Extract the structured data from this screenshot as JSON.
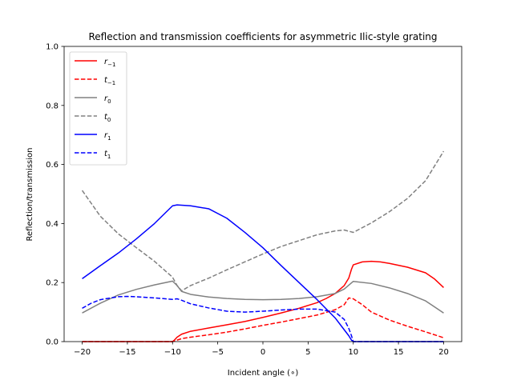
{
  "chart_data": {
    "type": "line",
    "title": "Reflection and transmission coefficients for asymmetric Ilic-style grating",
    "xlabel": "Incident angle (∘)",
    "ylabel": "Reflection/transmission",
    "xlim": [
      -22,
      22
    ],
    "ylim": [
      0,
      1.0
    ],
    "xticks": [
      -20,
      -15,
      -10,
      -5,
      0,
      5,
      10,
      15,
      20
    ],
    "xtick_labels": [
      "−20",
      "−15",
      "−10",
      "−5",
      "0",
      "5",
      "10",
      "15",
      "20"
    ],
    "yticks": [
      0,
      0.2,
      0.4,
      0.6,
      0.8,
      1.0
    ],
    "ytick_labels": [
      "0.0",
      "0.2",
      "0.4",
      "0.6",
      "0.8",
      "1.0"
    ],
    "grid": false,
    "legend_position": "top-left",
    "series": [
      {
        "name": "r₋₁",
        "sym": "r",
        "sub": "−1",
        "color": "#ff0000",
        "dash": "solid",
        "x": [
          -20,
          -10,
          -9.8,
          -9.5,
          -9,
          -8,
          -6,
          -4,
          -2,
          0,
          2,
          4,
          6,
          7,
          8,
          9,
          9.5,
          9.8,
          10,
          11,
          12,
          13,
          14,
          16,
          18,
          19,
          20
        ],
        "y": [
          0,
          0,
          0.005,
          0.015,
          0.025,
          0.035,
          0.046,
          0.057,
          0.068,
          0.082,
          0.097,
          0.113,
          0.132,
          0.146,
          0.163,
          0.19,
          0.215,
          0.245,
          0.26,
          0.27,
          0.272,
          0.27,
          0.265,
          0.252,
          0.233,
          0.212,
          0.183
        ]
      },
      {
        "name": "t₋₁",
        "sym": "t",
        "sub": "−1",
        "color": "#ff0000",
        "dash": "dashed",
        "x": [
          -20,
          -10,
          -9.5,
          -9,
          -8,
          -6,
          -4,
          -2,
          0,
          2,
          4,
          6,
          8,
          9,
          9.5,
          10,
          11,
          12,
          14,
          16,
          18,
          20
        ],
        "y": [
          0,
          0,
          0.005,
          0.01,
          0.015,
          0.023,
          0.032,
          0.043,
          0.055,
          0.066,
          0.078,
          0.09,
          0.108,
          0.125,
          0.148,
          0.145,
          0.125,
          0.1,
          0.073,
          0.052,
          0.033,
          0.013
        ]
      },
      {
        "name": "r₀",
        "sym": "r",
        "sub": "0",
        "color": "#808080",
        "dash": "solid",
        "x": [
          -20,
          -18,
          -16,
          -14,
          -12,
          -10,
          -9.5,
          -9,
          -8,
          -6,
          -4,
          -2,
          0,
          2,
          4,
          6,
          8,
          9,
          10,
          12,
          14,
          16,
          18,
          20
        ],
        "y": [
          0.097,
          0.13,
          0.158,
          0.177,
          0.192,
          0.205,
          0.19,
          0.17,
          0.16,
          0.151,
          0.146,
          0.143,
          0.142,
          0.143,
          0.146,
          0.152,
          0.163,
          0.178,
          0.204,
          0.197,
          0.182,
          0.163,
          0.138,
          0.097
        ]
      },
      {
        "name": "t₀",
        "sym": "t",
        "sub": "0",
        "color": "#808080",
        "dash": "dashed",
        "x": [
          -20,
          -18,
          -16,
          -14,
          -12,
          -10,
          -9.5,
          -9,
          -8,
          -6,
          -4,
          -2,
          0,
          2,
          4,
          6,
          8,
          9,
          10,
          12,
          14,
          16,
          18,
          20
        ],
        "y": [
          0.512,
          0.425,
          0.365,
          0.318,
          0.272,
          0.218,
          0.19,
          0.172,
          0.19,
          0.215,
          0.243,
          0.27,
          0.297,
          0.322,
          0.342,
          0.362,
          0.375,
          0.378,
          0.37,
          0.402,
          0.44,
          0.485,
          0.545,
          0.645
        ]
      },
      {
        "name": "r₁",
        "sym": "r",
        "sub": "1",
        "color": "#0000ff",
        "dash": "solid",
        "x": [
          -20,
          -18,
          -16,
          -14,
          -12,
          -10,
          -9.5,
          -8,
          -6,
          -4,
          -2,
          0,
          2,
          4,
          6,
          8,
          9,
          9.5,
          9.8,
          10,
          12,
          14,
          16,
          18,
          20
        ],
        "y": [
          0.213,
          0.257,
          0.3,
          0.348,
          0.4,
          0.46,
          0.463,
          0.46,
          0.45,
          0.418,
          0.37,
          0.318,
          0.258,
          0.2,
          0.142,
          0.08,
          0.04,
          0.02,
          0.005,
          0,
          0,
          0,
          0,
          0,
          0
        ]
      },
      {
        "name": "t₁",
        "sym": "t",
        "sub": "1",
        "color": "#0000ff",
        "dash": "dashed",
        "x": [
          -20,
          -19,
          -18,
          -16,
          -15,
          -14,
          -12,
          -10,
          -9.5,
          -9,
          -8,
          -6,
          -4,
          -2,
          0,
          2,
          4,
          6,
          8,
          9,
          9.5,
          9.8,
          10,
          12,
          14,
          16,
          18,
          20
        ],
        "y": [
          0.113,
          0.13,
          0.142,
          0.152,
          0.153,
          0.152,
          0.148,
          0.143,
          0.145,
          0.14,
          0.128,
          0.114,
          0.103,
          0.1,
          0.103,
          0.107,
          0.11,
          0.11,
          0.1,
          0.075,
          0.045,
          0.02,
          0,
          0,
          0,
          0,
          0,
          0
        ]
      }
    ]
  }
}
